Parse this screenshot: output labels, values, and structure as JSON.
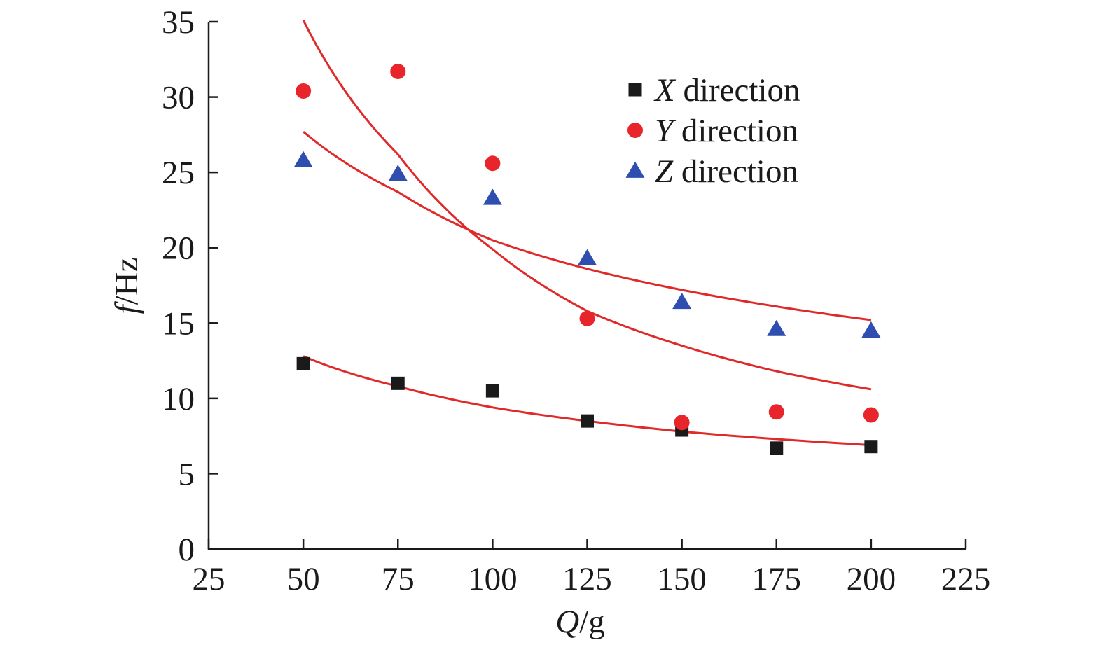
{
  "chart_data": {
    "type": "scatter",
    "xlabel": {
      "var": "Q",
      "unit": "/g"
    },
    "ylabel": {
      "var": "f",
      "unit": "/Hz"
    },
    "xlim": [
      25,
      225
    ],
    "ylim": [
      0,
      35
    ],
    "xticks": [
      25,
      50,
      75,
      100,
      125,
      150,
      175,
      200,
      225
    ],
    "yticks": [
      0,
      5,
      10,
      15,
      20,
      25,
      30,
      35
    ],
    "grid": false,
    "legend_position": "top-right",
    "series": [
      {
        "name": "X direction",
        "name_var": "X",
        "name_rest": " direction",
        "marker": "square",
        "color": "#1a1a1a",
        "x": [
          50,
          75,
          100,
          125,
          150,
          175,
          200
        ],
        "y": [
          12.3,
          11.0,
          10.5,
          8.5,
          7.9,
          6.7,
          6.8
        ]
      },
      {
        "name": "Y direction",
        "name_var": "Y",
        "name_rest": " direction",
        "marker": "circle",
        "color": "#e8252b",
        "x": [
          50,
          75,
          100,
          125,
          150,
          175,
          200
        ],
        "y": [
          30.4,
          31.7,
          25.6,
          15.3,
          8.4,
          9.1,
          8.9
        ]
      },
      {
        "name": "Z direction",
        "name_var": "Z",
        "name_rest": " direction",
        "marker": "triangle",
        "color": "#2f4fb0",
        "x": [
          50,
          75,
          100,
          125,
          150,
          175,
          200
        ],
        "y": [
          25.8,
          24.9,
          23.3,
          19.3,
          16.4,
          14.6,
          14.5
        ]
      }
    ],
    "trendlines": [
      {
        "series": "X direction",
        "color": "#e02a2a",
        "x": [
          50,
          75,
          100,
          125,
          150,
          175,
          200
        ],
        "y": [
          12.8,
          10.8,
          9.4,
          8.5,
          7.8,
          7.3,
          6.9
        ]
      },
      {
        "series": "Y direction",
        "color": "#e02a2a",
        "x": [
          50,
          75,
          100,
          125,
          150,
          175,
          200
        ],
        "y": [
          35.1,
          26.2,
          19.9,
          15.8,
          13.5,
          11.8,
          10.6
        ]
      },
      {
        "series": "Z direction",
        "color": "#e02a2a",
        "x": [
          50,
          75,
          100,
          125,
          150,
          175,
          200
        ],
        "y": [
          27.7,
          23.7,
          20.5,
          18.6,
          17.2,
          16.1,
          15.2
        ]
      }
    ]
  }
}
